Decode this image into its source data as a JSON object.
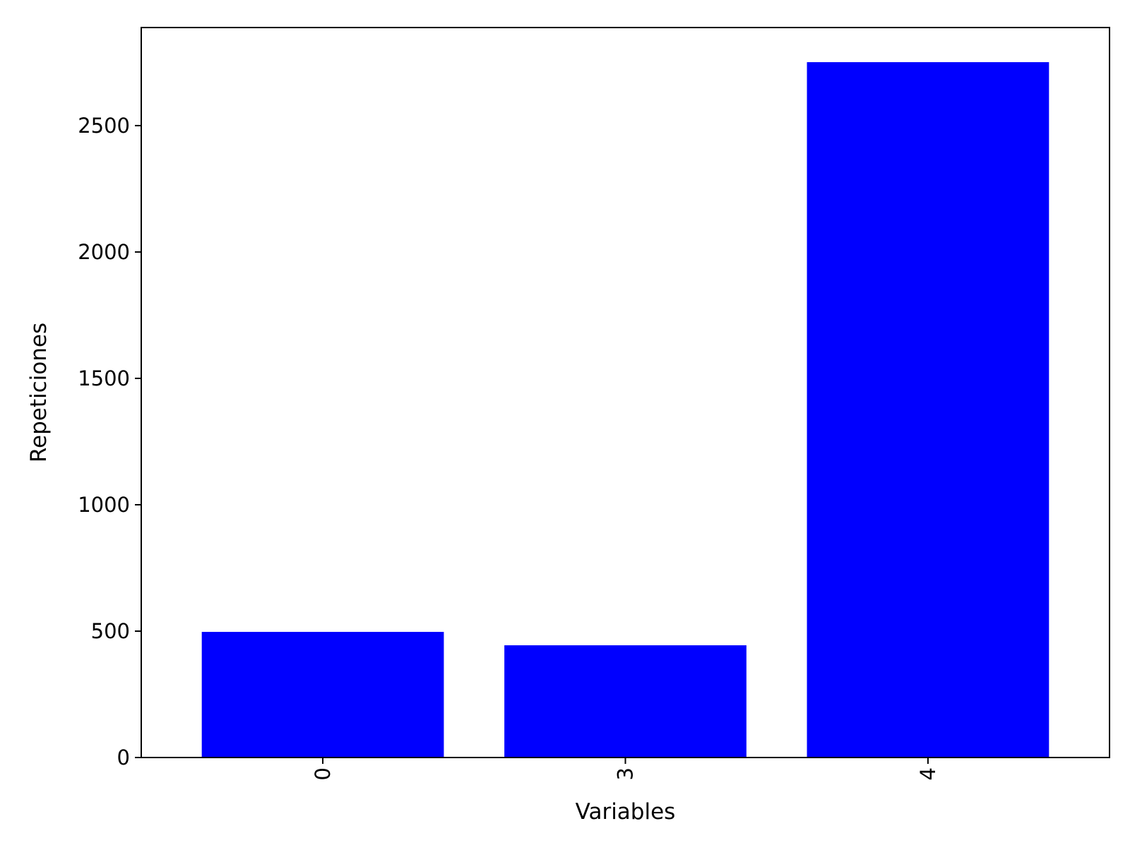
{
  "chart_data": {
    "type": "bar",
    "title": "",
    "xlabel": "Variables",
    "ylabel": "Repeticiones",
    "categories": [
      "0",
      "3",
      "4"
    ],
    "values": [
      497,
      444,
      2751
    ],
    "ylim": [
      0,
      2888
    ],
    "yticks": [
      0,
      500,
      1000,
      1500,
      2000,
      2500
    ],
    "x_tick_rotation": "vertical",
    "grid": false,
    "legend": "none",
    "bar_color": "#0000ff",
    "axes_color": "#000000",
    "background": "#ffffff"
  }
}
